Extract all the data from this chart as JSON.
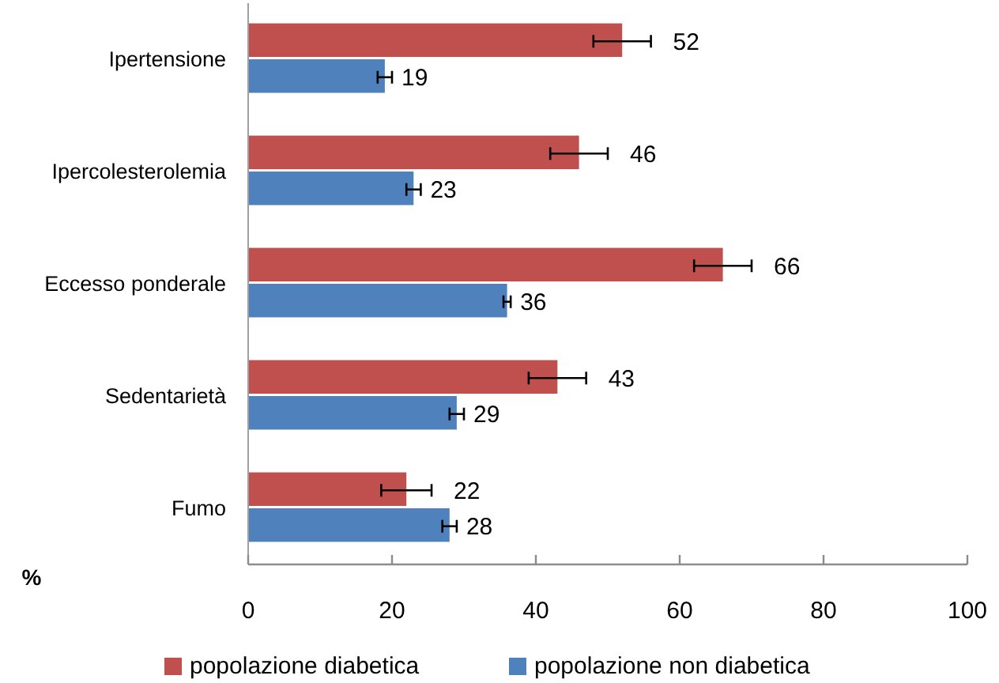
{
  "chart_data": {
    "type": "bar",
    "orientation": "horizontal",
    "categories": [
      "Ipertensione",
      "Ipercolesterolemia",
      "Eccesso ponderale",
      "Sedentarietà",
      "Fumo"
    ],
    "series": [
      {
        "name": "popolazione diabetica",
        "color": "#c0504d",
        "values": [
          52,
          46,
          66,
          43,
          22
        ],
        "errors": [
          4,
          4,
          4,
          4,
          3.5
        ]
      },
      {
        "name": "popolazione non diabetica",
        "color": "#4f81bd",
        "values": [
          19,
          23,
          36,
          29,
          28
        ],
        "errors": [
          1,
          1,
          0.5,
          1,
          1
        ]
      }
    ],
    "xlim": [
      0,
      100
    ],
    "xticks": [
      0,
      20,
      40,
      60,
      80,
      100
    ],
    "xlabel": "%",
    "data_labels": true,
    "legend": "bottom",
    "grid": false
  }
}
